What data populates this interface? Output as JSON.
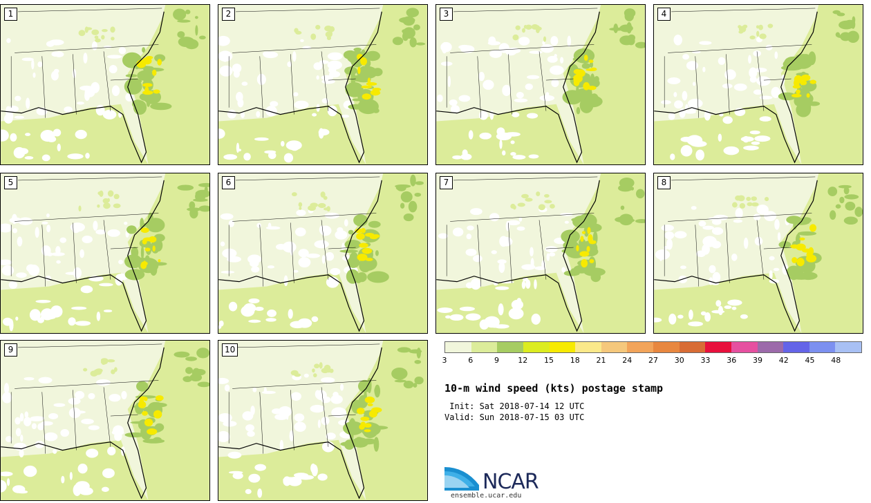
{
  "panels": [
    {
      "label": "1"
    },
    {
      "label": "2"
    },
    {
      "label": "3"
    },
    {
      "label": "4"
    },
    {
      "label": "5"
    },
    {
      "label": "6"
    },
    {
      "label": "7"
    },
    {
      "label": "8"
    },
    {
      "label": "9"
    },
    {
      "label": "10"
    }
  ],
  "colorbar": {
    "levels": [
      "3",
      "6",
      "9",
      "12",
      "15",
      "18",
      "21",
      "24",
      "27",
      "30",
      "33",
      "36",
      "39",
      "42",
      "45",
      "48"
    ],
    "colors": [
      "#f1f6dc",
      "#dcec9a",
      "#a6cc62",
      "#dcec20",
      "#f7ea00",
      "#fbe98a",
      "#f5c87c",
      "#f2a45a",
      "#e8873f",
      "#d86c35",
      "#e8103c",
      "#e650a0",
      "#9c6aaa",
      "#6464e8",
      "#7c90f0",
      "#a8c0f4"
    ]
  },
  "title": "10-m wind speed (kts) postage stamp",
  "init": " Init: Sat 2018-07-14 12 UTC",
  "valid": "Valid: Sun 2018-07-15 03 UTC",
  "logo": {
    "name": "NCAR",
    "url": "ensemble.ucar.edu"
  },
  "map_colors": {
    "land_base": "#f1f6dc",
    "light": "#dcec9a",
    "medium": "#a6cc62",
    "high": "#f7ea00",
    "calm": "#ffffff"
  }
}
